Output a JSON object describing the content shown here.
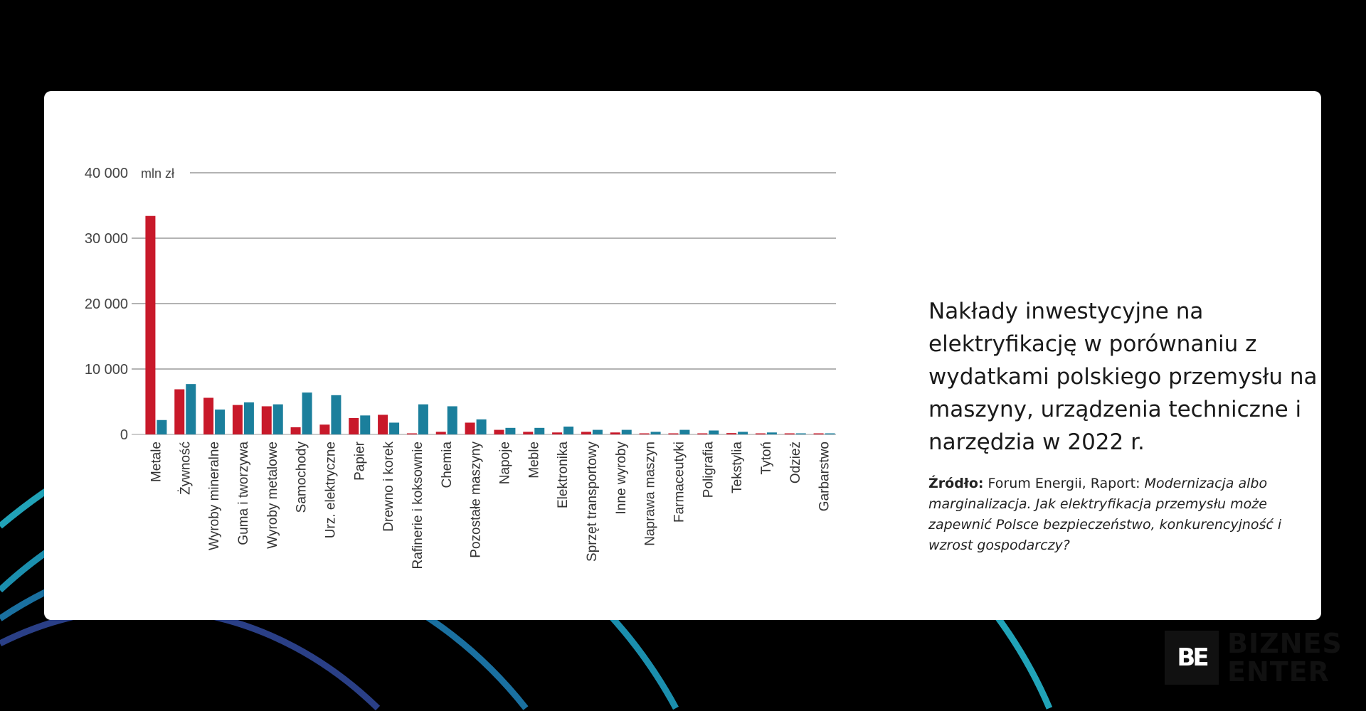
{
  "colors": {
    "electrification": "#c8192a",
    "machinery": "#1b7f9c",
    "background": "#000000"
  },
  "chart_data": {
    "type": "bar",
    "unit_label": "mln zł",
    "ylim": [
      0,
      40000
    ],
    "yticks": [
      0,
      10000,
      20000,
      30000,
      40000
    ],
    "ytick_labels": [
      "0",
      "10 000",
      "20 000",
      "30 000",
      "40 000"
    ],
    "grid": true,
    "categories": [
      "Metale",
      "Żywność",
      "Wyroby mineralne",
      "Guma i tworzywa",
      "Wyroby metalowe",
      "Samochody",
      "Urz. elektryczne",
      "Papier",
      "Drewno i korek",
      "Rafinerie i koksownie",
      "Chemia",
      "Pozostałe maszyny",
      "Napoje",
      "Meble",
      "Elektronika",
      "Sprzęt transportowy",
      "Inne wyroby",
      "Naprawa maszyn",
      "Farmaceutyki",
      "Poligrafia",
      "Tekstylia",
      "Tytoń",
      "Odzież",
      "Garbarstwo"
    ],
    "series": [
      {
        "name": "Nakłady inwestycyjne na elektryfikację",
        "color": "#c8192a",
        "values": [
          33400,
          6900,
          5600,
          4500,
          4300,
          1100,
          1500,
          2500,
          3000,
          100,
          400,
          1800,
          700,
          400,
          300,
          400,
          300,
          150,
          50,
          100,
          200,
          150,
          100,
          50
        ]
      },
      {
        "name": "Wydatki na maszyny, urządzenia techniczne i narzędzia",
        "color": "#1b7f9c",
        "values": [
          2200,
          7700,
          3800,
          4900,
          4600,
          6400,
          6000,
          2900,
          1800,
          4600,
          4300,
          2300,
          1000,
          1000,
          1200,
          700,
          700,
          400,
          700,
          600,
          400,
          300,
          150,
          50
        ]
      }
    ]
  },
  "info": {
    "title": "Nakłady inwestycyjne na elektryfikację w porównaniu z wydatkami polskiego przemysłu na maszyny, urządzenia techniczne i narzędzia w 2022 r.",
    "source_label": "Źródło:",
    "source_text": " Forum Energii, Raport: ",
    "source_italic": "Modernizacja albo marginalizacja. Jak elektryfikacja przemysłu może zapewnić Polsce bezpieczeństwo, konkurencyjność i wzrost gospodarczy?"
  },
  "logo": {
    "mark": "BE",
    "line1": "BIZNES",
    "line2": "ENTER"
  }
}
